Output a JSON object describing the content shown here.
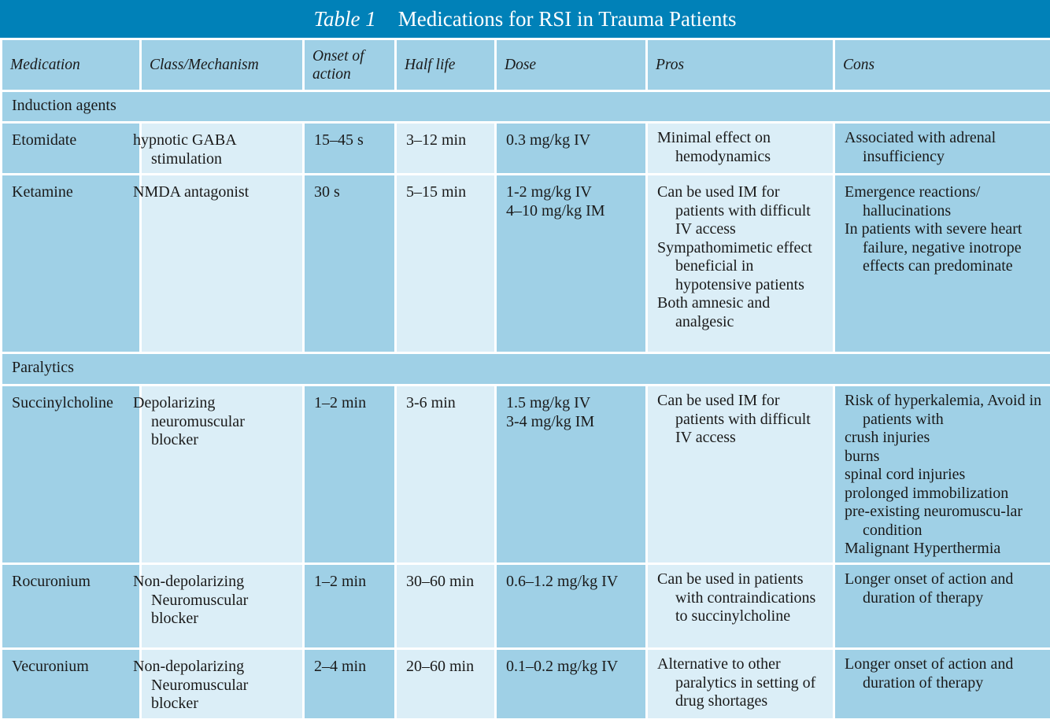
{
  "table": {
    "title_number": "Table 1",
    "title_text": "Medications for RSI in Trauma Patients",
    "headers": [
      "Medication",
      "Class/Mechanism",
      "Onset of action",
      "Half life",
      "Dose",
      "Pros",
      "Cons"
    ],
    "sections": [
      {
        "label": "Induction agents",
        "rows": [
          {
            "medication": "Etomidate",
            "class": "hypnotic GABA stimulation",
            "onset": "15–45 s",
            "half_life": "3–12 min",
            "dose": [
              "0.3 mg/kg IV"
            ],
            "pros": [
              "Minimal effect on hemodynamics"
            ],
            "cons": [
              "Associated with adrenal insufficiency"
            ]
          },
          {
            "medication": "Ketamine",
            "class": "NMDA antagonist",
            "onset": "30 s",
            "half_life": "5–15 min",
            "dose": [
              "1-2 mg/kg IV",
              "4–10 mg/kg IM"
            ],
            "pros": [
              "Can be used IM for patients with difficult IV access",
              "Sympathomimetic effect beneficial in hypotensive patients",
              "Both amnesic and analgesic"
            ],
            "cons": [
              "Emergence reactions/ hallucinations",
              "In patients with severe heart failure, negative inotrope effects can predominate"
            ]
          }
        ]
      },
      {
        "label": "Paralytics",
        "rows": [
          {
            "medication": "Succinylcholine",
            "class": "Depolarizing neuromuscular blocker",
            "onset": "1–2 min",
            "half_life": "3-6 min",
            "dose": [
              "1.5 mg/kg IV",
              "3-4 mg/kg IM"
            ],
            "pros": [
              "Can be used IM for patients with difficult IV access"
            ],
            "cons": [
              "Risk of hyperkalemia, Avoid in patients with",
              "crush injuries",
              "burns",
              "spinal cord injuries",
              "prolonged immobilization",
              "pre-existing neuromuscu-lar condition",
              "Malignant Hyperthermia"
            ]
          },
          {
            "medication": "Rocuronium",
            "class": "Non-depolarizing Neuromuscular blocker",
            "onset": "1–2 min",
            "half_life": "30–60 min",
            "dose": [
              "0.6–1.2 mg/kg IV"
            ],
            "pros": [
              "Can be used in patients with contraindications to succinylcholine"
            ],
            "cons": [
              "Longer onset of action and duration of therapy"
            ]
          },
          {
            "medication": "Vecuronium",
            "class": "Non-depolarizing Neuromuscular blocker",
            "onset": "2–4 min",
            "half_life": "20–60 min",
            "dose": [
              "0.1–0.2 mg/kg IV"
            ],
            "pros": [
              "Alternative to other paralytics in setting of drug shortages"
            ],
            "cons": [
              "Longer onset of action and duration of therapy"
            ]
          }
        ]
      }
    ]
  }
}
